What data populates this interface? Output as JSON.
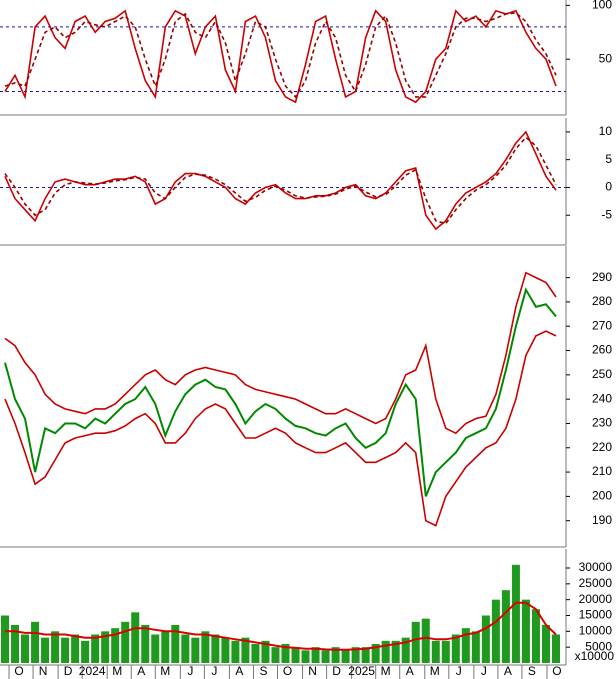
{
  "chart_data": [
    {
      "type": "line",
      "xlim": [
        -0.5,
        56
      ],
      "ylim": [
        0,
        105
      ],
      "yticks": [
        50,
        100
      ],
      "hlines": [
        80,
        20
      ],
      "hline_color": "#1a1aa8",
      "series": [
        {
          "color": "#cc0000",
          "values": [
            20,
            35,
            15,
            80,
            90,
            70,
            60,
            85,
            90,
            75,
            85,
            88,
            95,
            60,
            30,
            15,
            80,
            95,
            90,
            55,
            80,
            90,
            40,
            20,
            85,
            90,
            70,
            30,
            15,
            10,
            45,
            85,
            90,
            50,
            15,
            20,
            70,
            95,
            85,
            40,
            15,
            10,
            20,
            50,
            60,
            95,
            85,
            90,
            80,
            95,
            92,
            95,
            75,
            60,
            50,
            25
          ]
        },
        {
          "color": "#990000",
          "dashed": true,
          "values": [
            25,
            28,
            25,
            50,
            75,
            80,
            70,
            75,
            85,
            82,
            80,
            85,
            90,
            80,
            50,
            25,
            50,
            85,
            92,
            75,
            70,
            85,
            65,
            30,
            55,
            85,
            80,
            50,
            25,
            15,
            30,
            65,
            85,
            70,
            35,
            20,
            45,
            80,
            90,
            65,
            30,
            15,
            15,
            35,
            55,
            80,
            88,
            88,
            85,
            88,
            92,
            93,
            85,
            68,
            55,
            35
          ]
        }
      ]
    },
    {
      "type": "line",
      "xlim": [
        -0.5,
        56
      ],
      "ylim": [
        -10,
        12.5
      ],
      "yticks": [
        -5,
        0,
        5,
        10
      ],
      "hlines": [
        0
      ],
      "hline_color": "#1a1aa8",
      "series": [
        {
          "color": "#cc0000",
          "values": [
            2,
            -2,
            -4,
            -6,
            -2,
            1,
            1.5,
            1,
            0.5,
            0.5,
            1,
            1.5,
            1.5,
            2,
            1,
            -3,
            -2,
            1,
            2.5,
            2.5,
            2,
            1,
            0,
            -2,
            -3,
            -1,
            0,
            0.5,
            -1,
            -2,
            -2,
            -1.5,
            -1.5,
            -1,
            0,
            0.5,
            -1.5,
            -2,
            -1,
            1,
            3,
            3.5,
            -5,
            -7.5,
            -6,
            -3,
            -1,
            0,
            1,
            2.5,
            5,
            8,
            10,
            6,
            2,
            -0.5
          ]
        },
        {
          "color": "#990000",
          "dashed": true,
          "values": [
            2.5,
            0,
            -3,
            -5,
            -4,
            -1,
            0.5,
            1,
            0.8,
            0.6,
            0.8,
            1.2,
            1.4,
            1.8,
            1.5,
            -1,
            -2,
            0,
            1.8,
            2.4,
            2.2,
            1.5,
            0.5,
            -1,
            -2.5,
            -1.8,
            -0.5,
            0.2,
            -0.5,
            -1.5,
            -1.9,
            -1.7,
            -1.6,
            -1.2,
            -0.3,
            0.2,
            -0.8,
            -1.7,
            -1.3,
            0.3,
            2.2,
            3.2,
            -2,
            -6,
            -6.5,
            -4,
            -2,
            -0.5,
            0.5,
            2,
            4,
            7,
            9,
            7.5,
            4,
            0.5
          ]
        }
      ]
    },
    {
      "type": "line",
      "xlim": [
        -0.5,
        56
      ],
      "ylim": [
        180,
        303
      ],
      "yticks": [
        190,
        200,
        210,
        220,
        230,
        240,
        250,
        260,
        270,
        280,
        290
      ],
      "series": [
        {
          "color": "#cc0000",
          "values": [
            265,
            262,
            255,
            250,
            242,
            238,
            236,
            235,
            234,
            236,
            236,
            238,
            242,
            246,
            250,
            252,
            248,
            246,
            250,
            252,
            253,
            252,
            251,
            250,
            246,
            244,
            243,
            242,
            241,
            240,
            238,
            236,
            234,
            234,
            236,
            234,
            232,
            230,
            232,
            240,
            250,
            252,
            262,
            240,
            228,
            226,
            230,
            232,
            233,
            242,
            258,
            278,
            292,
            290,
            288,
            282
          ]
        },
        {
          "color": "#cc0000",
          "values": [
            240,
            230,
            218,
            205,
            208,
            215,
            222,
            224,
            225,
            226,
            226,
            227,
            229,
            232,
            234,
            230,
            222,
            222,
            226,
            232,
            236,
            238,
            236,
            230,
            224,
            224,
            226,
            228,
            226,
            222,
            220,
            218,
            218,
            220,
            222,
            218,
            214,
            214,
            216,
            218,
            222,
            218,
            190,
            188,
            200,
            206,
            212,
            216,
            220,
            222,
            228,
            240,
            258,
            266,
            268,
            266
          ]
        },
        {
          "color": "#008a00",
          "width": 2,
          "values": [
            255,
            240,
            232,
            210,
            228,
            226,
            230,
            230,
            228,
            232,
            230,
            234,
            238,
            240,
            245,
            238,
            225,
            235,
            242,
            246,
            248,
            245,
            244,
            238,
            230,
            235,
            238,
            236,
            232,
            229,
            228,
            226,
            225,
            228,
            230,
            224,
            220,
            222,
            226,
            238,
            246,
            240,
            200,
            210,
            214,
            218,
            224,
            226,
            228,
            236,
            252,
            270,
            285,
            278,
            279,
            274
          ]
        }
      ]
    },
    {
      "type": "bar",
      "xlim": [
        -0.5,
        56
      ],
      "ylim": [
        0,
        36000
      ],
      "yticks": [
        5000,
        10000,
        15000,
        20000,
        25000,
        30000
      ],
      "unit_label": "x10000",
      "xticks": [
        {
          "value": 1.4,
          "label": "O"
        },
        {
          "value": 3.8,
          "label": "N"
        },
        {
          "value": 6.3,
          "label": "D"
        },
        {
          "value": 8.7,
          "label": "2024"
        },
        {
          "value": 11.2,
          "label": "M"
        },
        {
          "value": 13.6,
          "label": "A"
        },
        {
          "value": 16.0,
          "label": "M"
        },
        {
          "value": 18.5,
          "label": "J"
        },
        {
          "value": 20.9,
          "label": "J"
        },
        {
          "value": 23.4,
          "label": "A"
        },
        {
          "value": 25.8,
          "label": "S"
        },
        {
          "value": 28.2,
          "label": "O"
        },
        {
          "value": 30.7,
          "label": "N"
        },
        {
          "value": 33.1,
          "label": "D"
        },
        {
          "value": 35.6,
          "label": "2025"
        },
        {
          "value": 38.0,
          "label": "M"
        },
        {
          "value": 40.4,
          "label": "A"
        },
        {
          "value": 42.9,
          "label": "M"
        },
        {
          "value": 45.3,
          "label": "J"
        },
        {
          "value": 47.8,
          "label": "J"
        },
        {
          "value": 50.2,
          "label": "A"
        },
        {
          "value": 52.6,
          "label": "S"
        },
        {
          "value": 55.1,
          "label": "O"
        }
      ],
      "series": [
        {
          "type": "bar",
          "color": "#1f9a1f",
          "values": [
            15000,
            12000,
            9000,
            13000,
            8000,
            10000,
            8000,
            9000,
            7000,
            9000,
            10000,
            11000,
            13000,
            16000,
            12000,
            9000,
            10000,
            12000,
            9000,
            8000,
            10000,
            9000,
            8000,
            7000,
            8000,
            6000,
            7000,
            5000,
            6000,
            5000,
            4000,
            5000,
            4000,
            5000,
            4000,
            5000,
            5000,
            6000,
            7000,
            7000,
            8000,
            13000,
            14000,
            7000,
            7000,
            9000,
            11000,
            10000,
            15000,
            20000,
            23000,
            31000,
            20000,
            17000,
            12000,
            9000
          ]
        },
        {
          "type": "line",
          "color": "#dd0000",
          "width": 2,
          "values": [
            10000,
            10000,
            9500,
            9500,
            9000,
            9000,
            9000,
            8500,
            8000,
            8000,
            8500,
            9000,
            10000,
            11000,
            11000,
            10500,
            10000,
            10000,
            9500,
            9000,
            9000,
            8500,
            8000,
            7500,
            7000,
            6500,
            6000,
            5500,
            5000,
            4800,
            4500,
            4500,
            4300,
            4200,
            4200,
            4300,
            4500,
            5000,
            5500,
            6000,
            6500,
            7500,
            8000,
            7500,
            7500,
            8000,
            9000,
            9500,
            11000,
            13000,
            16000,
            19000,
            19000,
            17000,
            12000,
            9000
          ]
        }
      ]
    }
  ]
}
